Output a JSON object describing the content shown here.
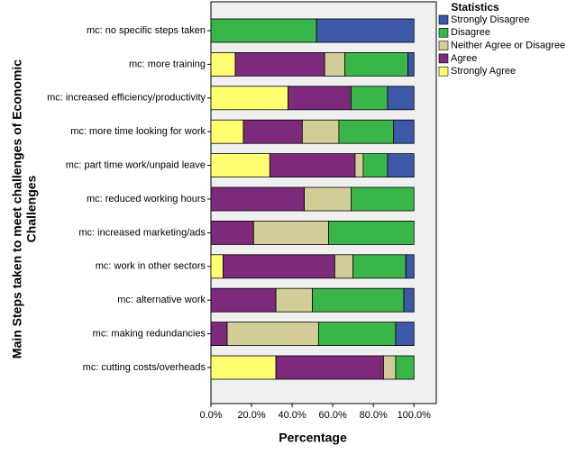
{
  "chart_data": {
    "type": "stacked-barh",
    "x_label": "Percentage",
    "y_label": [
      "Main Steps taken to meet challenges of Economic",
      "Challenges"
    ],
    "legend_title": "Statistics",
    "legend": "right",
    "categories": [
      "mc: no specific steps taken",
      "mc: more training",
      "mc: increased efficiency/productivity",
      "mc: more time looking for work",
      "mc: part time work/unpaid leave",
      "mc: reduced working hours",
      "mc: increased marketing/ads",
      "mc: work in other sectors",
      "mc: alternative work",
      "mc: making redundancies",
      "mc: cutting costs/overheads"
    ],
    "series": [
      {
        "name": "Strongly Disagree",
        "color": "#3d58a7",
        "values": [
          48,
          3,
          13,
          10,
          13,
          0,
          0,
          4,
          5,
          9,
          0
        ]
      },
      {
        "name": "Disagree",
        "color": "#39b54a",
        "values": [
          52,
          31,
          18,
          27,
          12,
          31,
          42,
          26,
          45,
          38,
          9
        ]
      },
      {
        "name": "Neither Agree or Disagree",
        "color": "#d3ce97",
        "values": [
          0,
          10,
          0,
          18,
          4,
          23,
          37,
          9,
          18,
          45,
          6
        ]
      },
      {
        "name": "Agree",
        "color": "#7d2a7d",
        "values": [
          0,
          44,
          31,
          29,
          42,
          46,
          21,
          55,
          32,
          8,
          53
        ]
      },
      {
        "name": "Strongly Agree",
        "color": "#ffff70",
        "values": [
          0,
          12,
          38,
          16,
          29,
          0,
          0,
          6,
          0,
          0,
          32
        ]
      }
    ],
    "xlim": [
      0,
      111
    ],
    "xticks": [
      {
        "value": 0,
        "label": "0.0%"
      },
      {
        "value": 20,
        "label": "20.0%"
      },
      {
        "value": 40,
        "label": "40.0%"
      },
      {
        "value": 60,
        "label": "60.0%"
      },
      {
        "value": 80,
        "label": "80.0%"
      },
      {
        "value": 100,
        "label": "100.0%"
      }
    ]
  }
}
